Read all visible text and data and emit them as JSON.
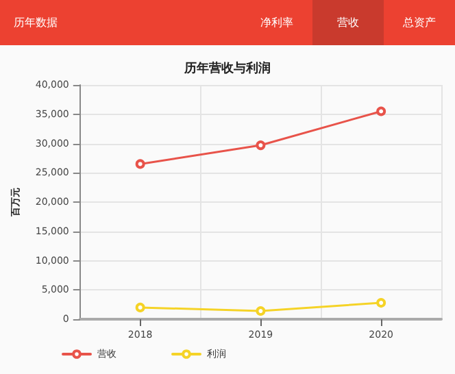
{
  "chart_data": {
    "type": "line",
    "title": "历年营收与利润",
    "ylabel": "百万元",
    "annotations": [
      "历年数据",
      "净利率",
      "营收",
      "总资产"
    ],
    "categories": [
      "2018",
      "2019",
      "2020"
    ],
    "series": [
      {
        "name": "营收",
        "color": "#e8534a",
        "values": [
          26500,
          29700,
          35500
        ]
      },
      {
        "name": "利润",
        "color": "#f5d327",
        "values": [
          2000,
          1400,
          2800
        ]
      }
    ],
    "ylim": [
      0,
      40000
    ],
    "yticks": [
      0,
      {
        "value": 5000,
        "label": "5,000"
      },
      {
        "value": 10000,
        "label": "10,000"
      },
      {
        "value": 15000,
        "label": "15,000"
      },
      {
        "value": 20000,
        "label": "20,000"
      },
      {
        "value": 25000,
        "label": "25,000"
      },
      {
        "value": 30000,
        "label": "30,000"
      },
      {
        "value": 35000,
        "label": "35,000"
      },
      {
        "value": 40000,
        "label": "40,000"
      }
    ],
    "grid": true,
    "legend": "bottom left",
    "marker": "circle",
    "line_style": "solid"
  }
}
